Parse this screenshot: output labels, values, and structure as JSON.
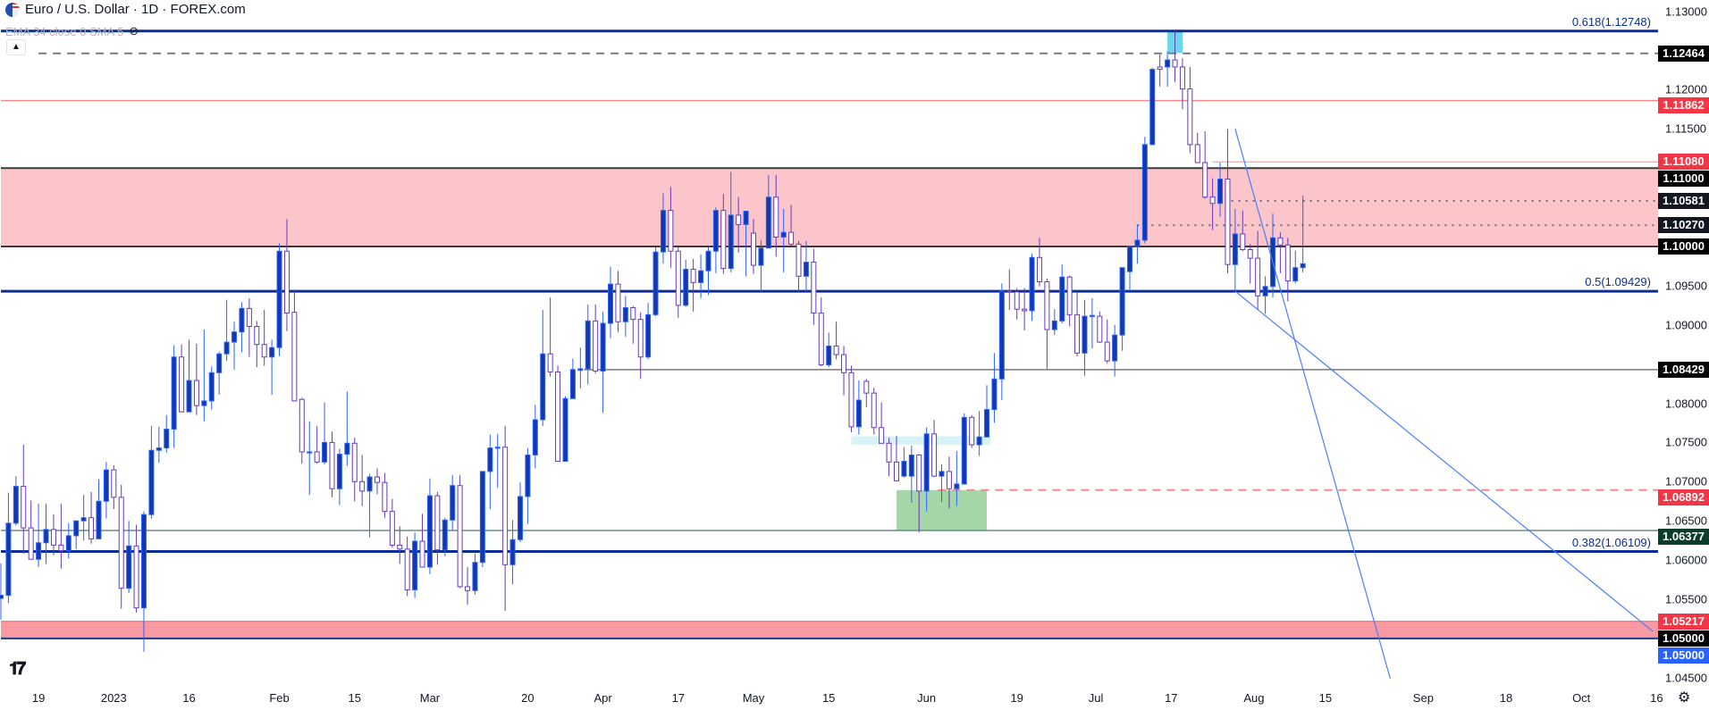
{
  "header": {
    "title": "Euro / U.S. Dollar · 1D · FOREX.com",
    "indicator": "EMA 34 close 0 SMA 5",
    "indicator_icon": "eye-crossed-icon",
    "flag_icon": "eur-usd-flag-icon",
    "collapse_icon": "chevron-up-icon"
  },
  "footer": {
    "logo": "TV",
    "settings_icon": "gear-icon"
  },
  "chart_data": {
    "type": "candlestick",
    "symbol": "EURUSD",
    "timeframe": "1D",
    "colors": {
      "up_body": "#1238b0",
      "up_border": "#2962ff",
      "down_body": "#ffffff",
      "down_border": "#673ab7"
    },
    "ylim": [
      1.0425,
      1.1315
    ],
    "y_ticks": [
      "1.13000",
      "1.12000",
      "1.11500",
      "1.09500",
      "1.09000",
      "1.08000",
      "1.07500",
      "1.07000",
      "1.06500",
      "1.06000",
      "1.05500",
      "1.04500"
    ],
    "x_ticks": [
      {
        "label": "19",
        "bar": 5
      },
      {
        "label": "2023",
        "bar": 15
      },
      {
        "label": "16",
        "bar": 25
      },
      {
        "label": "Feb",
        "bar": 37
      },
      {
        "label": "15",
        "bar": 47
      },
      {
        "label": "Mar",
        "bar": 57
      },
      {
        "label": "20",
        "bar": 70
      },
      {
        "label": "Apr",
        "bar": 80
      },
      {
        "label": "17",
        "bar": 90
      },
      {
        "label": "May",
        "bar": 100
      },
      {
        "label": "15",
        "bar": 110
      },
      {
        "label": "Jun",
        "bar": 123
      },
      {
        "label": "19",
        "bar": 135
      },
      {
        "label": "Jul",
        "bar": 145.5
      },
      {
        "label": "17",
        "bar": 155.5
      },
      {
        "label": "Aug",
        "bar": 166.5
      },
      {
        "label": "15",
        "bar": 176
      },
      {
        "label": "Sep",
        "bar": 189
      },
      {
        "label": "18",
        "bar": 200
      },
      {
        "label": "Oct",
        "bar": 210
      },
      {
        "label": "16",
        "bar": 220
      }
    ],
    "ohlc": [
      [
        1.0551,
        1.0596,
        1.0524,
        1.0555
      ],
      [
        1.0555,
        1.0686,
        1.0545,
        1.0647
      ],
      [
        1.0647,
        1.0707,
        1.0644,
        1.0694
      ],
      [
        1.0694,
        1.0747,
        1.0608,
        1.0641
      ],
      [
        1.0641,
        1.0676,
        1.0601,
        1.0601
      ],
      [
        1.0601,
        1.0672,
        1.0591,
        1.0622
      ],
      [
        1.0622,
        1.0672,
        1.0595,
        1.0639
      ],
      [
        1.0639,
        1.0658,
        1.0606,
        1.0619
      ],
      [
        1.0619,
        1.0672,
        1.0589,
        1.0612
      ],
      [
        1.0612,
        1.0647,
        1.0602,
        1.0631
      ],
      [
        1.0631,
        1.065,
        1.0614,
        1.065
      ],
      [
        1.065,
        1.0683,
        1.0625,
        1.0654
      ],
      [
        1.0654,
        1.0687,
        1.0621,
        1.0627
      ],
      [
        1.0627,
        1.0703,
        1.0627,
        1.0675
      ],
      [
        1.0675,
        1.0725,
        1.0653,
        1.0715
      ],
      [
        1.0715,
        1.0721,
        1.0665,
        1.068
      ],
      [
        1.068,
        1.0696,
        1.0538,
        1.0564
      ],
      [
        1.0564,
        1.065,
        1.0558,
        1.0618
      ],
      [
        1.0618,
        1.0645,
        1.0533,
        1.0539
      ],
      [
        1.0539,
        1.0662,
        1.0483,
        1.0658
      ],
      [
        1.0658,
        1.0771,
        1.0653,
        1.074
      ],
      [
        1.074,
        1.077,
        1.0724,
        1.0743
      ],
      [
        1.0743,
        1.0785,
        1.0737,
        1.0767
      ],
      [
        1.0767,
        1.0874,
        1.0743,
        1.0859
      ],
      [
        1.0859,
        1.0875,
        1.0789,
        1.0789
      ],
      [
        1.0789,
        1.0881,
        1.0789,
        1.0829
      ],
      [
        1.0829,
        1.0876,
        1.0785,
        1.0797
      ],
      [
        1.0797,
        1.0894,
        1.0777,
        1.0803
      ],
      [
        1.0803,
        1.0847,
        1.0792,
        1.0839
      ],
      [
        1.0839,
        1.0866,
        1.0811,
        1.0863
      ],
      [
        1.0863,
        1.0932,
        1.0854,
        1.0878
      ],
      [
        1.0878,
        1.0904,
        1.0843,
        1.0891
      ],
      [
        1.0891,
        1.0929,
        1.0865,
        1.0921
      ],
      [
        1.0921,
        1.0934,
        1.0859,
        1.0898
      ],
      [
        1.0898,
        1.0905,
        1.0846,
        1.0875
      ],
      [
        1.0875,
        1.0919,
        1.0848,
        1.0859
      ],
      [
        1.0859,
        1.0881,
        1.0811,
        1.0871
      ],
      [
        1.0871,
        1.1004,
        1.086,
        1.0994
      ],
      [
        1.0994,
        1.1035,
        1.0892,
        1.0915
      ],
      [
        1.0916,
        1.0945,
        1.0803,
        1.0803
      ],
      [
        1.0805,
        1.0807,
        1.0723,
        1.0738
      ],
      [
        1.0737,
        1.0777,
        1.0683,
        1.0738
      ],
      [
        1.0738,
        1.0771,
        1.0723,
        1.0725
      ],
      [
        1.0725,
        1.0801,
        1.0722,
        1.075
      ],
      [
        1.075,
        1.0764,
        1.068,
        1.0691
      ],
      [
        1.0691,
        1.0742,
        1.067,
        1.0735
      ],
      [
        1.0735,
        1.0815,
        1.072,
        1.0749
      ],
      [
        1.0749,
        1.0756,
        1.0675,
        1.07
      ],
      [
        1.07,
        1.0734,
        1.0669,
        1.0688
      ],
      [
        1.0688,
        1.071,
        1.0629,
        1.0706
      ],
      [
        1.0706,
        1.0717,
        1.0684,
        1.0699
      ],
      [
        1.0699,
        1.0711,
        1.0654,
        1.0662
      ],
      [
        1.0662,
        1.0678,
        1.0616,
        1.0619
      ],
      [
        1.0619,
        1.0643,
        1.0595,
        1.0614
      ],
      [
        1.0614,
        1.063,
        1.0554,
        1.0562
      ],
      [
        1.0562,
        1.0635,
        1.0552,
        1.0624
      ],
      [
        1.0624,
        1.0659,
        1.0591,
        1.0591
      ],
      [
        1.0591,
        1.0704,
        1.0582,
        1.0682
      ],
      [
        1.0682,
        1.0687,
        1.0594,
        1.0613
      ],
      [
        1.0613,
        1.0654,
        1.0605,
        1.0651
      ],
      [
        1.0651,
        1.0708,
        1.0638,
        1.0695
      ],
      [
        1.0695,
        1.0708,
        1.0564,
        1.0566
      ],
      [
        1.0566,
        1.0591,
        1.0543,
        1.0561
      ],
      [
        1.0561,
        1.0608,
        1.0556,
        1.0597
      ],
      [
        1.0597,
        1.0713,
        1.0591,
        1.0713
      ],
      [
        1.0713,
        1.076,
        1.0665,
        1.0743
      ],
      [
        1.0743,
        1.0761,
        1.0692,
        1.0744
      ],
      [
        1.0744,
        1.0771,
        1.0535,
        1.0594
      ],
      [
        1.0594,
        1.0651,
        1.0569,
        1.0626
      ],
      [
        1.0626,
        1.0699,
        1.0623,
        1.0681
      ],
      [
        1.0681,
        1.0743,
        1.0646,
        1.0734
      ],
      [
        1.0734,
        1.0798,
        1.0717,
        1.0779
      ],
      [
        1.0779,
        1.0919,
        1.0771,
        1.0863
      ],
      [
        1.0863,
        1.0935,
        1.0834,
        1.084
      ],
      [
        1.084,
        1.0848,
        1.0726,
        1.0726
      ],
      [
        1.0726,
        1.0809,
        1.0726,
        1.0806
      ],
      [
        1.0806,
        1.0857,
        1.0806,
        1.0843
      ],
      [
        1.0842,
        1.0871,
        1.0819,
        1.0844
      ],
      [
        1.0844,
        1.0926,
        1.0824,
        1.0905
      ],
      [
        1.0905,
        1.0926,
        1.0838,
        1.0841
      ],
      [
        1.0841,
        1.0917,
        1.0788,
        1.0902
      ],
      [
        1.0902,
        1.0974,
        1.0883,
        1.0952
      ],
      [
        1.0952,
        1.0969,
        1.0891,
        1.0904
      ],
      [
        1.0904,
        1.0937,
        1.0885,
        1.0922
      ],
      [
        1.0922,
        1.0924,
        1.0876,
        1.0907
      ],
      [
        1.0907,
        1.0916,
        1.0831,
        1.0859
      ],
      [
        1.0859,
        1.0928,
        1.0856,
        1.0913
      ],
      [
        1.0913,
        1.0999,
        1.0911,
        1.0993
      ],
      [
        1.0993,
        1.1068,
        1.0978,
        1.1046
      ],
      [
        1.1046,
        1.1076,
        1.0973,
        1.0994
      ],
      [
        1.0994,
        1.0999,
        1.0909,
        1.0925
      ],
      [
        1.0925,
        1.0983,
        1.0923,
        1.0971
      ],
      [
        1.0971,
        1.0984,
        1.0917,
        1.0954
      ],
      [
        1.0954,
        1.099,
        1.0934,
        1.0969
      ],
      [
        1.0969,
        1.0999,
        1.0938,
        1.0994
      ],
      [
        1.0994,
        1.105,
        1.0966,
        1.1046
      ],
      [
        1.1046,
        1.1067,
        1.0965,
        1.0972
      ],
      [
        1.0972,
        1.1095,
        1.0967,
        1.104
      ],
      [
        1.104,
        1.1063,
        1.0992,
        1.1028
      ],
      [
        1.1028,
        1.1045,
        1.0962,
        1.1045
      ],
      [
        1.1017,
        1.1035,
        1.0965,
        1.0976
      ],
      [
        1.0976,
        1.1008,
        1.0942,
        1.0998
      ],
      [
        1.0998,
        1.1091,
        1.0998,
        1.1063
      ],
      [
        1.1063,
        1.1091,
        1.0987,
        1.1012
      ],
      [
        1.1012,
        1.1048,
        1.0967,
        1.1018
      ],
      [
        1.1018,
        1.1053,
        1.1001,
        1.1003
      ],
      [
        1.1003,
        1.1007,
        1.0942,
        1.0962
      ],
      [
        1.0962,
        1.1007,
        1.0942,
        1.098
      ],
      [
        1.098,
        1.0997,
        1.09,
        1.0915
      ],
      [
        1.0915,
        1.0935,
        1.0847,
        1.0849
      ],
      [
        1.0849,
        1.089,
        1.0846,
        1.0873
      ],
      [
        1.0873,
        1.0904,
        1.0856,
        1.0862
      ],
      [
        1.0862,
        1.0873,
        1.081,
        1.0839
      ],
      [
        1.0839,
        1.0848,
        1.0763,
        1.077
      ],
      [
        1.077,
        1.0829,
        1.076,
        1.0804
      ],
      [
        1.0828,
        1.0831,
        1.0795,
        1.0813
      ],
      [
        1.0813,
        1.082,
        1.076,
        1.0769
      ],
      [
        1.0769,
        1.0801,
        1.0749,
        1.0749
      ],
      [
        1.0749,
        1.0756,
        1.0707,
        1.0725
      ],
      [
        1.0725,
        1.0758,
        1.0701,
        1.0701
      ],
      [
        1.0707,
        1.0744,
        1.0705,
        1.0726
      ],
      [
        1.0707,
        1.0746,
        1.0673,
        1.0734
      ],
      [
        1.0734,
        1.0735,
        1.0635,
        1.0688
      ],
      [
        1.0688,
        1.0769,
        1.0662,
        1.0761
      ],
      [
        1.0761,
        1.0779,
        1.0706,
        1.0707
      ],
      [
        1.0707,
        1.0722,
        1.0674,
        1.0713
      ],
      [
        1.0713,
        1.0732,
        1.0666,
        1.0691
      ],
      [
        1.0691,
        1.0739,
        1.0669,
        1.0697
      ],
      [
        1.0697,
        1.0787,
        1.0696,
        1.0782
      ],
      [
        1.0782,
        1.0785,
        1.0743,
        1.0747
      ],
      [
        1.0747,
        1.079,
        1.0733,
        1.0757
      ],
      [
        1.0757,
        1.0823,
        1.0756,
        1.0792
      ],
      [
        1.0792,
        1.0864,
        1.0775,
        1.0831
      ],
      [
        1.0831,
        1.0953,
        1.0804,
        1.0943
      ],
      [
        1.0943,
        1.0971,
        1.0919,
        1.0942
      ],
      [
        1.0942,
        1.0947,
        1.0907,
        1.092
      ],
      [
        1.092,
        1.0947,
        1.0893,
        1.0918
      ],
      [
        1.0918,
        1.0991,
        1.0905,
        1.0986
      ],
      [
        1.0986,
        1.1011,
        1.0949,
        1.0955
      ],
      [
        1.0955,
        1.0959,
        1.0844,
        1.0894
      ],
      [
        1.0894,
        1.092,
        1.0887,
        1.0905
      ],
      [
        1.0905,
        1.0977,
        1.0902,
        1.0961
      ],
      [
        1.0961,
        1.0963,
        1.0898,
        1.0913
      ],
      [
        1.0913,
        1.0942,
        1.086,
        1.0864
      ],
      [
        1.0864,
        1.0932,
        1.0835,
        1.0911
      ],
      [
        1.0911,
        1.0934,
        1.087,
        1.0912
      ],
      [
        1.0911,
        1.0917,
        1.0877,
        1.0878
      ],
      [
        1.0878,
        1.0907,
        1.0851,
        1.0854
      ],
      [
        1.0854,
        1.09,
        1.0834,
        1.0887
      ],
      [
        1.0887,
        1.0973,
        1.0867,
        1.0973
      ],
      [
        1.0968,
        1.1,
        1.0943,
        1.1
      ],
      [
        1.1,
        1.1028,
        1.0978,
        1.1008
      ],
      [
        1.1008,
        1.114,
        1.1004,
        1.113
      ],
      [
        1.113,
        1.1228,
        1.1129,
        1.1226
      ],
      [
        1.1229,
        1.1245,
        1.1204,
        1.1226
      ],
      [
        1.1229,
        1.1249,
        1.1204,
        1.1238
      ],
      [
        1.1238,
        1.1275,
        1.121,
        1.1229
      ],
      [
        1.1229,
        1.124,
        1.1175,
        1.1201
      ],
      [
        1.1201,
        1.1229,
        1.1119,
        1.113
      ],
      [
        1.113,
        1.1145,
        1.1107,
        1.1107
      ],
      [
        1.1107,
        1.1147,
        1.1061,
        1.1063
      ],
      [
        1.1063,
        1.1087,
        1.1021,
        1.1055
      ],
      [
        1.1055,
        1.1107,
        1.1038,
        1.1086
      ],
      [
        1.1086,
        1.115,
        1.0966,
        1.0977
      ],
      [
        1.0977,
        1.1048,
        1.0943,
        1.1016
      ],
      [
        1.1016,
        1.1046,
        1.0994,
        1.0996
      ],
      [
        1.0996,
        1.1003,
        1.0953,
        1.0985
      ],
      [
        1.0985,
        1.102,
        1.0919,
        1.0937
      ],
      [
        1.0937,
        1.0962,
        1.0914,
        1.0949
      ],
      [
        1.0949,
        1.1042,
        1.0935,
        1.1011
      ],
      [
        1.1011,
        1.1018,
        1.0966,
        1.1002
      ],
      [
        1.1002,
        1.1011,
        1.093,
        1.0956
      ],
      [
        1.0956,
        1.0995,
        1.0953,
        1.0973
      ],
      [
        1.0973,
        1.1065,
        1.0967,
        1.0978
      ]
    ],
    "zones": [
      {
        "name": "resistance-zone",
        "from": 1.1,
        "to": 1.11,
        "color": "#fcc5ca",
        "from_bar": 0
      },
      {
        "name": "support-zone",
        "from": 1.05,
        "to": 1.05217,
        "color": "#f79aa2",
        "from_bar": 0
      },
      {
        "name": "green-box",
        "from": 1.06377,
        "to": 1.06892,
        "color": "#a5d6a7",
        "from_bar": 119,
        "to_bar": 131
      },
      {
        "name": "light-cyan-box",
        "from": 1.0747,
        "to": 1.0758,
        "color": "#d8f3f8",
        "from_bar": 113,
        "to_bar": 131.5
      },
      {
        "name": "cyan-box",
        "from": 1.1247,
        "to": 1.12748,
        "color": "#67d8e8",
        "from_bar": 155,
        "to_bar": 157
      }
    ],
    "levels": [
      {
        "price": 1.12748,
        "style": "fib",
        "color": "#0b2d94",
        "fib_label": "0.618(1.12748)",
        "from_bar": 0
      },
      {
        "price": 1.12464,
        "style": "dashed",
        "color": "#787b86",
        "label": "1.12464",
        "label_bg": "#000000",
        "from_bar": 5
      },
      {
        "price": 1.11862,
        "style": "solid",
        "color": "#f28b8f",
        "label": "1.11862",
        "label_bg": "#f23645",
        "from_bar": 0
      },
      {
        "price": 1.1108,
        "style": "thin",
        "color": "#f28b8f",
        "label": "1.11080",
        "label_bg": "#f23645",
        "from_bar": 161
      },
      {
        "price": 1.11,
        "style": "zone-edge",
        "color": "#3a3a3a",
        "label": "1.11000",
        "label_bg": "#000000",
        "from_bar": 0
      },
      {
        "price": 1.10581,
        "style": "dotted",
        "color": "#6a6d78",
        "label": "1.10581",
        "label_bg": "#131722",
        "from_bar": 163.5
      },
      {
        "price": 1.1027,
        "style": "dotted",
        "color": "#6a6d78",
        "label": "1.10270",
        "label_bg": "#131722",
        "from_bar": 151
      },
      {
        "price": 1.1,
        "style": "zone-edge",
        "color": "#3a3a3a",
        "label": "1.10000",
        "label_bg": "#000000",
        "from_bar": 0
      },
      {
        "price": 1.09429,
        "style": "fib",
        "color": "#0b2d94",
        "fib_label": "0.5(1.09429)",
        "from_bar": 0
      },
      {
        "price": 1.08429,
        "style": "solid",
        "color": "#787878",
        "label": "1.08429",
        "label_bg": "#000000",
        "from_bar": 77.5
      },
      {
        "price": 1.06892,
        "style": "dashed",
        "color": "#f28b8f",
        "label": "1.06892",
        "label_bg": "#f23645",
        "from_bar": 124.5
      },
      {
        "price": 1.06377,
        "style": "solid",
        "color": "#6f8b84",
        "label": "1.06377",
        "label_bg": "#0a3d2c",
        "from_bar": 0
      },
      {
        "price": 1.06109,
        "style": "fib",
        "color": "#0b2d94",
        "fib_label": "0.382(1.06109)",
        "from_bar": 0
      },
      {
        "price": 1.05217,
        "style": "solid",
        "color": "#f77c80",
        "label": "1.05217",
        "label_bg": "#f23645",
        "from_bar": 0
      },
      {
        "price": 1.05,
        "style": "zone-bottom",
        "color": "#1c3a94",
        "label": "1.05000",
        "label_bg": "#000000",
        "from_bar": 0
      }
    ],
    "extra_label": {
      "label": "1.05000",
      "label_bg": "#2962ff",
      "price": 1.05
    },
    "trendlines": [
      {
        "color": "#4a7dff",
        "from": {
          "bar": 164,
          "price": 1.115
        },
        "to": {
          "bar": 184.6,
          "price": 1.0449
        }
      },
      {
        "color": "#4a7dff",
        "from": {
          "bar": 164,
          "price": 1.0943
        },
        "to": {
          "bar": 219.5,
          "price": 1.0509
        }
      }
    ]
  }
}
